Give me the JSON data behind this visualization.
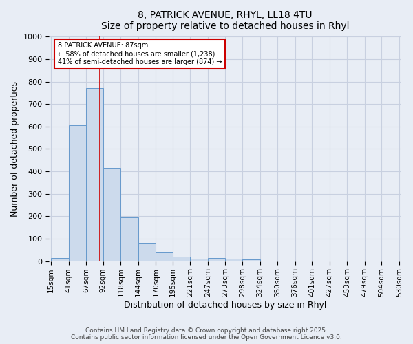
{
  "title_line1": "8, PATRICK AVENUE, RHYL, LL18 4TU",
  "title_line2": "Size of property relative to detached houses in Rhyl",
  "xlabel": "Distribution of detached houses by size in Rhyl",
  "ylabel": "Number of detached properties",
  "bar_edges": [
    15,
    41,
    67,
    92,
    118,
    144,
    170,
    195,
    221,
    247,
    273,
    298,
    324,
    350,
    376,
    401,
    427,
    453,
    479,
    504,
    530
  ],
  "bar_heights": [
    15,
    605,
    770,
    415,
    195,
    80,
    38,
    20,
    10,
    15,
    10,
    8,
    0,
    0,
    0,
    0,
    0,
    0,
    0,
    0
  ],
  "bar_color": "#ccdaec",
  "bar_edge_color": "#6699cc",
  "bar_edge_width": 0.7,
  "grid_color": "#c8d0e0",
  "bg_color": "#e8edf5",
  "property_line_x": 87,
  "property_line_color": "#cc0000",
  "ylim": [
    0,
    1000
  ],
  "yticks": [
    0,
    100,
    200,
    300,
    400,
    500,
    600,
    700,
    800,
    900,
    1000
  ],
  "annotation_text": "8 PATRICK AVENUE: 87sqm\n← 58% of detached houses are smaller (1,238)\n41% of semi-detached houses are larger (874) →",
  "annotation_box_color": "#ffffff",
  "annotation_box_edge": "#cc0000",
  "footer_line1": "Contains HM Land Registry data © Crown copyright and database right 2025.",
  "footer_line2": "Contains public sector information licensed under the Open Government Licence v3.0."
}
